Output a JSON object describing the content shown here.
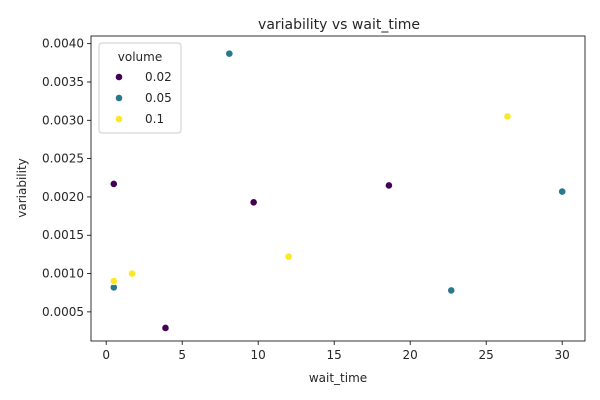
{
  "chart_data": {
    "type": "scatter",
    "title": "variability vs wait_time",
    "xlabel": "wait_time",
    "ylabel": "variability",
    "xlim": [
      -1.0,
      31.5
    ],
    "ylim": [
      0.00012,
      0.0041
    ],
    "x_ticks": [
      0,
      5,
      10,
      15,
      20,
      25,
      30
    ],
    "x_tick_labels": [
      "0",
      "5",
      "10",
      "15",
      "20",
      "25",
      "30"
    ],
    "y_ticks": [
      0.0005,
      0.001,
      0.0015,
      0.002,
      0.0025,
      0.003,
      0.0035,
      0.004
    ],
    "y_tick_labels": [
      "0.0005",
      "0.0010",
      "0.0015",
      "0.0020",
      "0.0025",
      "0.0030",
      "0.0035",
      "0.0040"
    ],
    "grid": false,
    "legend": {
      "title": "volume",
      "placement": "top-left"
    },
    "series": [
      {
        "name": "0.02",
        "color": "#440154",
        "points": [
          {
            "x": 0.5,
            "y": 0.00217
          },
          {
            "x": 3.9,
            "y": 0.00029
          },
          {
            "x": 9.7,
            "y": 0.00193
          },
          {
            "x": 18.6,
            "y": 0.00215
          }
        ]
      },
      {
        "name": "0.05",
        "color": "#2a788e",
        "points": [
          {
            "x": 0.5,
            "y": 0.00082
          },
          {
            "x": 8.1,
            "y": 0.00387
          },
          {
            "x": 22.7,
            "y": 0.00078
          },
          {
            "x": 30.0,
            "y": 0.00207
          }
        ]
      },
      {
        "name": "0.1",
        "color": "#fde725",
        "points": [
          {
            "x": 0.5,
            "y": 0.0009
          },
          {
            "x": 1.7,
            "y": 0.001
          },
          {
            "x": 12.0,
            "y": 0.00122
          },
          {
            "x": 26.4,
            "y": 0.00305
          }
        ]
      }
    ]
  }
}
